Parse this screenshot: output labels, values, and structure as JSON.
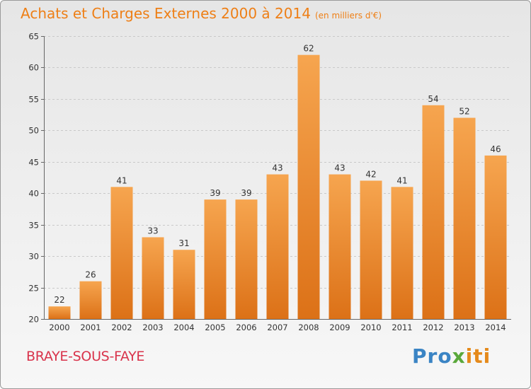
{
  "title": "Achats et Charges Externes 2000 à 2014",
  "subtitle": "(en milliers d'€)",
  "town": "BRAYE-SOUS-FAYE",
  "brand": "Proxiti",
  "colors": {
    "bar_light": "#f6a54f",
    "bar_dark": "#dc7117",
    "title": "#ee7f16",
    "town": "#d9334b"
  },
  "chart_data": {
    "type": "bar",
    "categories": [
      "2000",
      "2001",
      "2002",
      "2003",
      "2004",
      "2005",
      "2006",
      "2007",
      "2008",
      "2009",
      "2010",
      "2011",
      "2012",
      "2013",
      "2014"
    ],
    "values": [
      22,
      26,
      41,
      33,
      31,
      39,
      39,
      43,
      62,
      43,
      42,
      41,
      54,
      52,
      46
    ],
    "ylim": [
      20,
      65
    ],
    "yticks": [
      20,
      25,
      30,
      35,
      40,
      45,
      50,
      55,
      60,
      65
    ],
    "grid": true,
    "legend": "none"
  }
}
